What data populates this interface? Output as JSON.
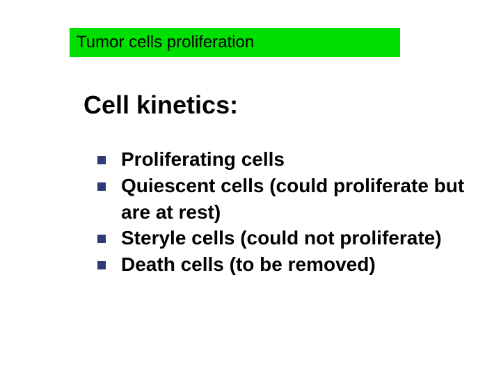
{
  "colors": {
    "titlebar_bg": "#00e000",
    "title_text": "#000000",
    "heading_text": "#000000",
    "body_text": "#000000",
    "bullet_fill": "#2f3a78",
    "background": "#ffffff"
  },
  "titlebar": {
    "text": "Tumor cells proliferation",
    "fontsize": 24,
    "fontweight": "normal"
  },
  "heading": {
    "text": "Cell kinetics:",
    "fontsize": 36,
    "fontweight": "bold"
  },
  "bullets": {
    "fontsize": 28,
    "fontweight": "bold",
    "marker_size": 12,
    "items": [
      "Proliferating cells",
      "Quiescent cells (could proliferate but are at rest)",
      "Steryle cells (could not proliferate)",
      "Death cells (to be removed)"
    ]
  }
}
